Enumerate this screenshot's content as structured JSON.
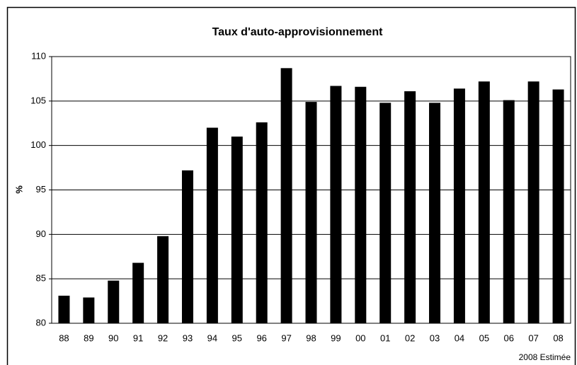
{
  "chart_data": {
    "type": "bar",
    "title": "Taux d'auto-approvisionnement",
    "y_label": "%",
    "annotation": "2008 Estimée",
    "categories": [
      "88",
      "89",
      "90",
      "91",
      "92",
      "93",
      "94",
      "95",
      "96",
      "97",
      "98",
      "99",
      "00",
      "01",
      "02",
      "03",
      "04",
      "05",
      "06",
      "07",
      "08"
    ],
    "values": [
      83.1,
      82.9,
      84.8,
      86.8,
      89.8,
      97.2,
      102.0,
      101.0,
      102.6,
      108.7,
      104.9,
      106.7,
      106.6,
      104.8,
      106.1,
      104.8,
      106.4,
      107.2,
      105.1,
      107.2,
      106.3
    ],
    "color": "#000000",
    "ylim": [
      80,
      110
    ],
    "yticks": [
      80,
      85,
      90,
      95,
      100,
      105,
      110
    ],
    "grid": true
  }
}
